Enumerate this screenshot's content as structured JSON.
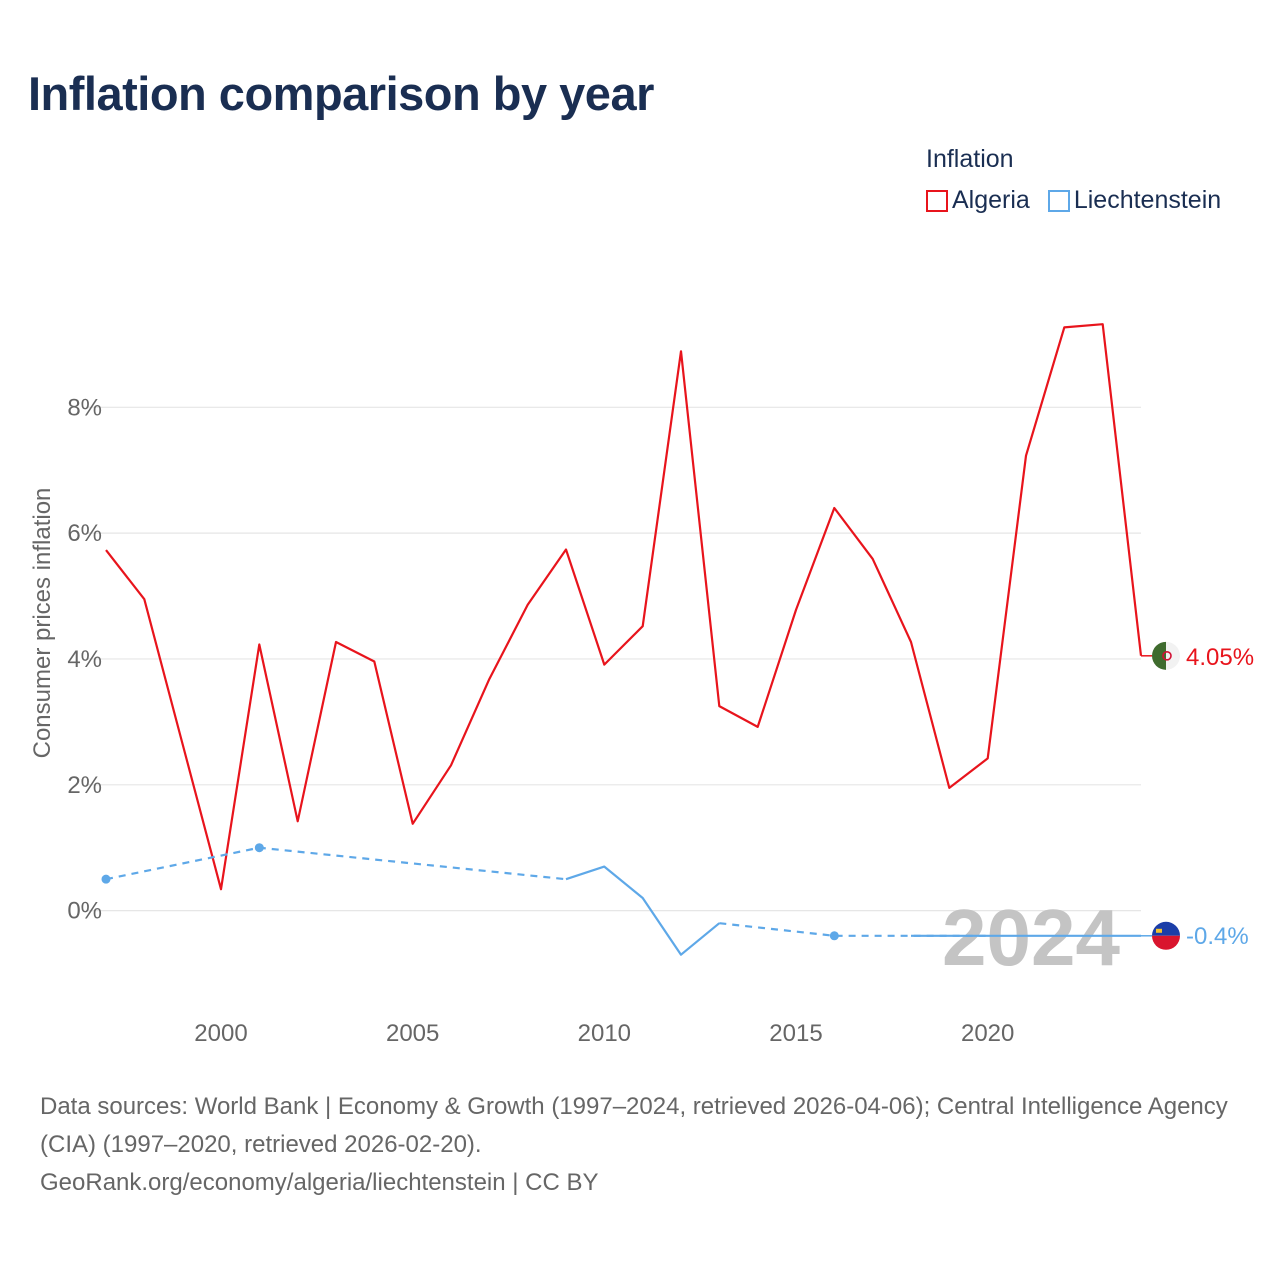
{
  "title": "Inflation comparison by year",
  "legend": {
    "title": "Inflation",
    "items": [
      {
        "name": "Algeria",
        "color": "#e8141c"
      },
      {
        "name": "Liechtenstein",
        "color": "#5ea8e8"
      }
    ]
  },
  "chart_data": {
    "type": "line",
    "title": "Inflation comparison by year",
    "xlabel": "",
    "ylabel": "Consumer prices inflation",
    "xlim": [
      1997,
      2024
    ],
    "ylim": [
      -1.5,
      10.5
    ],
    "x_ticks": [
      2000,
      2005,
      2010,
      2015,
      2020
    ],
    "y_ticks": [
      {
        "value": 0,
        "label": "0%"
      },
      {
        "value": 2,
        "label": "2%"
      },
      {
        "value": 4,
        "label": "4%"
      },
      {
        "value": 6,
        "label": "6%"
      },
      {
        "value": 8,
        "label": "8%"
      }
    ],
    "grid": true,
    "year_watermark": "2024",
    "series": [
      {
        "name": "Algeria",
        "color": "#e8141c",
        "end_label": "4.05%",
        "points": [
          [
            1997,
            5.73
          ],
          [
            1998,
            4.95
          ],
          [
            1999,
            2.64
          ],
          [
            2000,
            0.34
          ],
          [
            2001,
            4.23
          ],
          [
            2002,
            1.42
          ],
          [
            2003,
            4.27
          ],
          [
            2004,
            3.96
          ],
          [
            2005,
            1.38
          ],
          [
            2006,
            2.31
          ],
          [
            2007,
            3.68
          ],
          [
            2008,
            4.86
          ],
          [
            2009,
            5.74
          ],
          [
            2010,
            3.91
          ],
          [
            2011,
            4.52
          ],
          [
            2012,
            8.89
          ],
          [
            2013,
            3.25
          ],
          [
            2014,
            2.92
          ],
          [
            2015,
            4.78
          ],
          [
            2016,
            6.4
          ],
          [
            2017,
            5.59
          ],
          [
            2018,
            4.27
          ],
          [
            2019,
            1.95
          ],
          [
            2020,
            2.42
          ],
          [
            2021,
            7.23
          ],
          [
            2022,
            9.27
          ],
          [
            2023,
            9.32
          ],
          [
            2024,
            4.05
          ]
        ]
      },
      {
        "name": "Liechtenstein",
        "color": "#5ea8e8",
        "end_label": "-0.4%",
        "segments": [
          {
            "style": "dashed",
            "points": [
              [
                1997,
                0.5
              ],
              [
                2001,
                1.0
              ],
              [
                2009,
                0.5
              ]
            ]
          },
          {
            "style": "solid",
            "points": [
              [
                2009,
                0.5
              ],
              [
                2010,
                0.7
              ],
              [
                2011,
                0.2
              ],
              [
                2012,
                -0.7
              ],
              [
                2013,
                -0.2
              ]
            ]
          },
          {
            "style": "dashed",
            "points": [
              [
                2013,
                -0.2
              ],
              [
                2016,
                -0.4
              ],
              [
                2020,
                -0.4
              ]
            ]
          },
          {
            "style": "solid",
            "points": [
              [
                2018,
                -0.4
              ],
              [
                2020,
                -0.4
              ],
              [
                2024,
                -0.4
              ]
            ]
          }
        ],
        "markers": [
          [
            1997,
            0.5
          ],
          [
            2001,
            1.0
          ],
          [
            2016,
            -0.4
          ]
        ]
      }
    ]
  },
  "footer": {
    "sources": "Data sources: World Bank | Economy & Growth (1997–2024, retrieved 2026-04-06); Central Intelligence Agency (CIA) (1997–2020, retrieved 2026-02-20).",
    "credit": "GeoRank.org/economy/algeria/liechtenstein | CC BY"
  }
}
